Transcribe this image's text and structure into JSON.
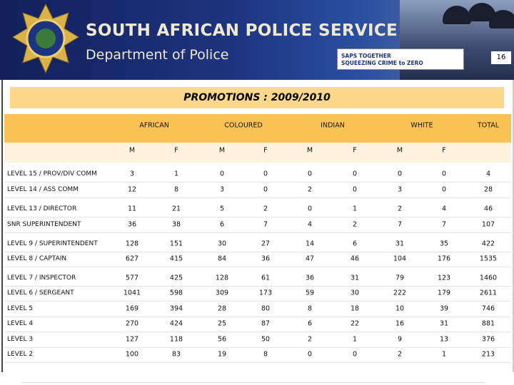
{
  "header": {
    "title": "SOUTH AFRICAN POLICE SERVICE",
    "subtitle": "Department of Police",
    "slogan": [
      "SAPS TOGETHER",
      "SQUEEZING CRIME to ZERO"
    ],
    "page_number": 16
  },
  "table": {
    "title": "PROMOTIONS : 2009/2010",
    "groups": [
      "AFRICAN",
      "COLOURED",
      "INDIAN",
      "WHITE",
      "TOTAL"
    ],
    "subheaders": [
      "M",
      "F",
      "M",
      "F",
      "M",
      "F",
      "M",
      "F"
    ],
    "rows": [
      {
        "label": "LEVEL 15 / PROV/DIV COMM",
        "values": [
          3,
          1,
          0,
          0,
          0,
          0,
          0,
          0,
          4
        ]
      },
      {
        "label": "LEVEL 14 / ASS COMM",
        "values": [
          12,
          8,
          3,
          0,
          2,
          0,
          3,
          0,
          28
        ]
      },
      {
        "label": "LEVEL 13 / DIRECTOR",
        "values": [
          11,
          21,
          5,
          2,
          0,
          1,
          2,
          4,
          46
        ]
      },
      {
        "label": "SNR SUPERINTENDENT",
        "values": [
          36,
          38,
          6,
          7,
          4,
          2,
          7,
          7,
          107
        ]
      },
      {
        "label": "LEVEL 9 / SUPERINTENDENT",
        "values": [
          128,
          151,
          30,
          27,
          14,
          6,
          31,
          35,
          422
        ]
      },
      {
        "label": "LEVEL 8 / CAPTAIN",
        "values": [
          627,
          415,
          84,
          36,
          47,
          46,
          104,
          176,
          1535
        ]
      },
      {
        "label": "LEVEL 7 / INSPECTOR",
        "values": [
          577,
          425,
          128,
          61,
          36,
          31,
          79,
          123,
          1460
        ]
      },
      {
        "label": "LEVEL 6 / SERGEANT",
        "values": [
          1041,
          598,
          309,
          173,
          59,
          30,
          222,
          179,
          2611
        ]
      },
      {
        "label": "LEVEL 5",
        "values": [
          169,
          394,
          28,
          80,
          8,
          18,
          10,
          39,
          746
        ]
      },
      {
        "label": "LEVEL 4",
        "values": [
          270,
          424,
          25,
          87,
          6,
          22,
          16,
          31,
          881
        ]
      },
      {
        "label": "LEVEL 3",
        "values": [
          127,
          118,
          56,
          50,
          2,
          1,
          9,
          13,
          376
        ]
      },
      {
        "label": "LEVEL 2",
        "values": [
          100,
          83,
          19,
          8,
          0,
          0,
          2,
          1,
          213
        ]
      }
    ]
  }
}
